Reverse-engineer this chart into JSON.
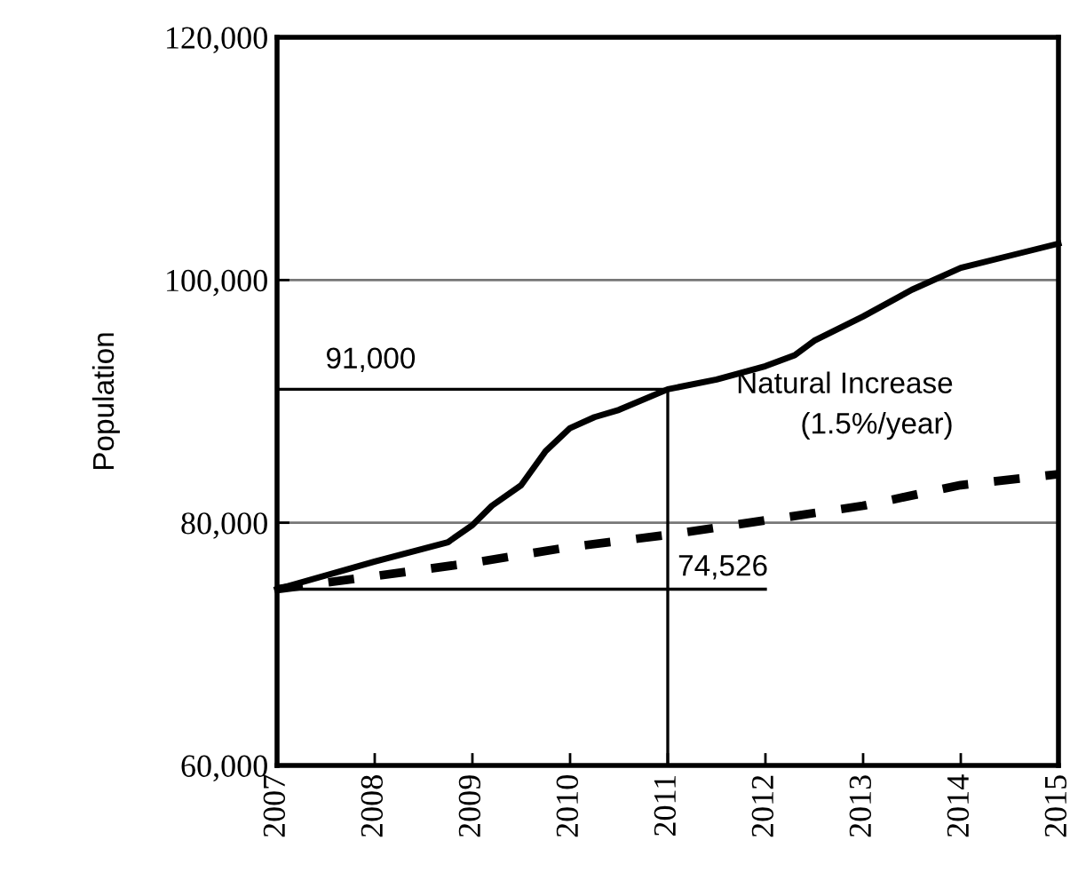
{
  "chart_data": {
    "type": "line",
    "ylabel": "Population",
    "xlim": [
      2007,
      2015
    ],
    "xticks": [
      2007,
      2008,
      2009,
      2010,
      2011,
      2012,
      2013,
      2014,
      2015
    ],
    "ylim": [
      60000,
      120000
    ],
    "yticks": [
      {
        "value": 60000,
        "label": "60,000"
      },
      {
        "value": 80000,
        "label": "80,000"
      },
      {
        "value": 100000,
        "label": "100,000"
      },
      {
        "value": 120000,
        "label": "120,000"
      }
    ],
    "grid": "y",
    "legend": false,
    "series": [
      {
        "color": "#000000",
        "line_style": "solid",
        "x": [
          2007,
          2008,
          2008.75,
          2009,
          2009.2,
          2009.5,
          2009.75,
          2010,
          2010.25,
          2010.5,
          2011,
          2011.5,
          2012,
          2012.3,
          2012.5,
          2013,
          2013.5,
          2014,
          2014.5,
          2015
        ],
        "values": [
          74526,
          76800,
          78400,
          79800,
          81400,
          83100,
          85900,
          87800,
          88700,
          89300,
          91000,
          91800,
          92900,
          93800,
          95000,
          97000,
          99200,
          101000,
          102000,
          103000
        ]
      },
      {
        "color": "#000000",
        "line_style": "dashed",
        "x": [
          2007,
          2008,
          2009,
          2010,
          2011,
          2012,
          2013,
          2014,
          2015
        ],
        "values": [
          74526,
          75600,
          76700,
          78000,
          79000,
          80200,
          81400,
          83100,
          84000
        ]
      },
      {
        "color": "#000000",
        "line_style": "solid",
        "x": [
          2007,
          2011
        ],
        "values": [
          91000,
          91000
        ]
      },
      {
        "color": "#000000",
        "line_style": "solid",
        "x": [
          2007,
          2012
        ],
        "values": [
          74526,
          74526
        ]
      }
    ],
    "ref_lines": [
      {
        "axis": "x",
        "value": 2011,
        "color": "#000000"
      }
    ],
    "annotations": [
      {
        "text": "91,000",
        "x": 2008,
        "y": 91000
      },
      {
        "text": "74,526",
        "x": 2011,
        "y": 74526
      },
      {
        "text": "Natural Increase\n(1.5%/year)",
        "x": 2014,
        "y": 84000
      }
    ]
  }
}
